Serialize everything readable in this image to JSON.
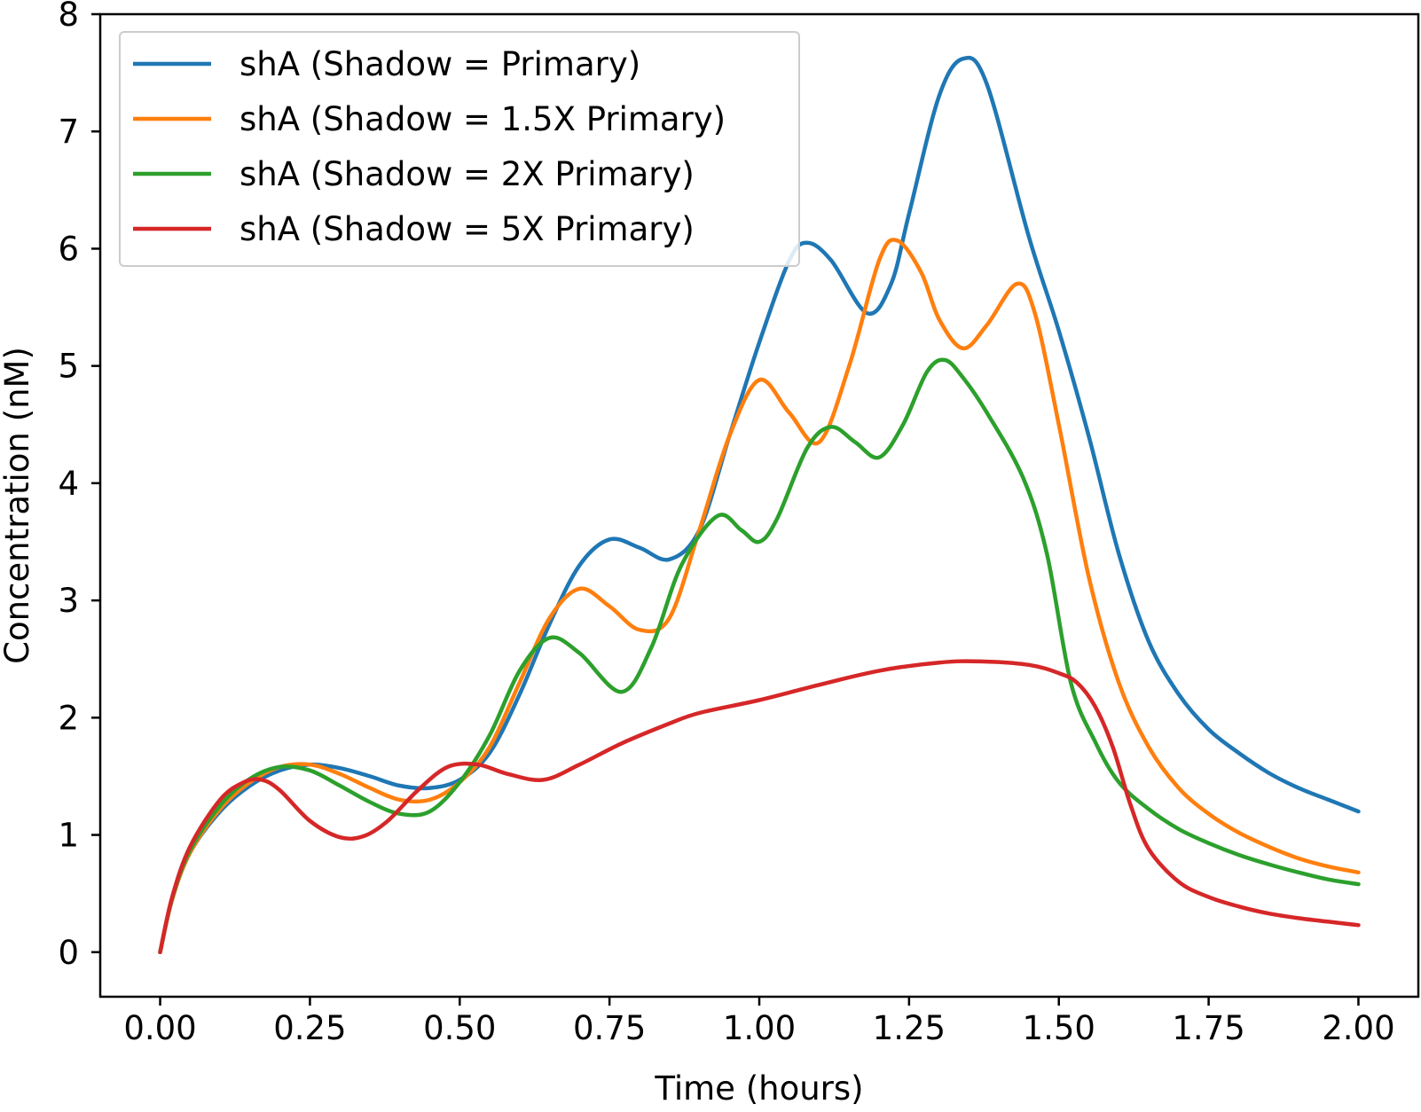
{
  "chart_data": {
    "type": "line",
    "title": "",
    "xlabel": "Time (hours)",
    "ylabel": "Concentration (nM)",
    "xlim": [
      -0.1,
      2.1
    ],
    "ylim": [
      -0.38,
      8
    ],
    "xticks": [
      "0.00",
      "0.25",
      "0.50",
      "0.75",
      "1.00",
      "1.25",
      "1.50",
      "1.75",
      "2.00"
    ],
    "yticks": [
      "0",
      "1",
      "2",
      "3",
      "4",
      "5",
      "6",
      "7",
      "8"
    ],
    "grid": false,
    "legend_position": "top-left",
    "series": [
      {
        "name": "shA (Shadow = Primary)",
        "color": "#1f77b4",
        "x": [
          0,
          0.02,
          0.05,
          0.1,
          0.15,
          0.2,
          0.25,
          0.3,
          0.35,
          0.4,
          0.45,
          0.5,
          0.55,
          0.6,
          0.65,
          0.7,
          0.75,
          0.8,
          0.85,
          0.9,
          0.95,
          1.0,
          1.05,
          1.08,
          1.12,
          1.18,
          1.22,
          1.25,
          1.3,
          1.34,
          1.38,
          1.45,
          1.5,
          1.55,
          1.6,
          1.65,
          1.7,
          1.75,
          1.8,
          1.85,
          1.9,
          1.95,
          2.0
        ],
        "y": [
          0,
          0.45,
          0.85,
          1.2,
          1.42,
          1.55,
          1.6,
          1.57,
          1.5,
          1.42,
          1.4,
          1.47,
          1.7,
          2.2,
          2.8,
          3.3,
          3.52,
          3.45,
          3.35,
          3.6,
          4.4,
          5.2,
          5.9,
          6.05,
          5.9,
          5.45,
          5.7,
          6.3,
          7.3,
          7.62,
          7.4,
          6.1,
          5.3,
          4.4,
          3.4,
          2.65,
          2.2,
          1.9,
          1.7,
          1.53,
          1.4,
          1.3,
          1.2
        ]
      },
      {
        "name": "shA (Shadow = 1.5X Primary)",
        "color": "#ff7f0e",
        "x": [
          0,
          0.02,
          0.05,
          0.1,
          0.15,
          0.2,
          0.25,
          0.3,
          0.35,
          0.4,
          0.45,
          0.5,
          0.55,
          0.6,
          0.65,
          0.7,
          0.75,
          0.8,
          0.85,
          0.9,
          0.95,
          1.0,
          1.05,
          1.1,
          1.15,
          1.2,
          1.23,
          1.27,
          1.3,
          1.34,
          1.38,
          1.43,
          1.46,
          1.5,
          1.55,
          1.6,
          1.65,
          1.7,
          1.75,
          1.8,
          1.85,
          1.9,
          1.95,
          2.0
        ],
        "y": [
          0,
          0.45,
          0.85,
          1.22,
          1.45,
          1.58,
          1.6,
          1.52,
          1.4,
          1.3,
          1.3,
          1.45,
          1.75,
          2.3,
          2.85,
          3.1,
          2.95,
          2.75,
          2.85,
          3.6,
          4.4,
          4.88,
          4.6,
          4.35,
          5.0,
          5.9,
          6.07,
          5.8,
          5.4,
          5.15,
          5.35,
          5.7,
          5.45,
          4.5,
          3.2,
          2.3,
          1.75,
          1.4,
          1.18,
          1.02,
          0.9,
          0.8,
          0.73,
          0.68
        ]
      },
      {
        "name": "shA (Shadow = 2X Primary)",
        "color": "#2ca02c",
        "x": [
          0,
          0.02,
          0.05,
          0.1,
          0.15,
          0.2,
          0.25,
          0.3,
          0.35,
          0.4,
          0.45,
          0.5,
          0.55,
          0.6,
          0.65,
          0.7,
          0.77,
          0.82,
          0.87,
          0.93,
          0.97,
          1.0,
          1.03,
          1.08,
          1.12,
          1.16,
          1.2,
          1.24,
          1.28,
          1.31,
          1.34,
          1.38,
          1.44,
          1.48,
          1.52,
          1.56,
          1.6,
          1.65,
          1.7,
          1.75,
          1.8,
          1.85,
          1.9,
          1.95,
          2.0
        ],
        "y": [
          0,
          0.46,
          0.87,
          1.25,
          1.48,
          1.58,
          1.55,
          1.42,
          1.28,
          1.18,
          1.2,
          1.45,
          1.85,
          2.4,
          2.68,
          2.55,
          2.22,
          2.6,
          3.3,
          3.72,
          3.6,
          3.5,
          3.7,
          4.3,
          4.48,
          4.35,
          4.22,
          4.5,
          4.95,
          5.05,
          4.9,
          4.6,
          4.05,
          3.4,
          2.3,
          1.8,
          1.45,
          1.22,
          1.05,
          0.93,
          0.83,
          0.75,
          0.68,
          0.62,
          0.58
        ]
      },
      {
        "name": "shA (Shadow = 5X Primary)",
        "color": "#d62728",
        "x": [
          0,
          0.02,
          0.05,
          0.1,
          0.14,
          0.17,
          0.2,
          0.25,
          0.3,
          0.34,
          0.38,
          0.43,
          0.48,
          0.53,
          0.58,
          0.64,
          0.7,
          0.77,
          0.85,
          0.9,
          1.0,
          1.1,
          1.2,
          1.3,
          1.37,
          1.45,
          1.5,
          1.53,
          1.56,
          1.59,
          1.62,
          1.65,
          1.7,
          1.75,
          1.8,
          1.85,
          1.9,
          1.95,
          2.0
        ],
        "y": [
          0,
          0.47,
          0.9,
          1.3,
          1.45,
          1.47,
          1.38,
          1.12,
          0.98,
          0.99,
          1.12,
          1.38,
          1.58,
          1.6,
          1.52,
          1.47,
          1.6,
          1.78,
          1.95,
          2.04,
          2.15,
          2.28,
          2.4,
          2.47,
          2.48,
          2.45,
          2.38,
          2.3,
          2.1,
          1.75,
          1.25,
          0.88,
          0.6,
          0.47,
          0.39,
          0.33,
          0.29,
          0.26,
          0.23
        ]
      }
    ]
  }
}
